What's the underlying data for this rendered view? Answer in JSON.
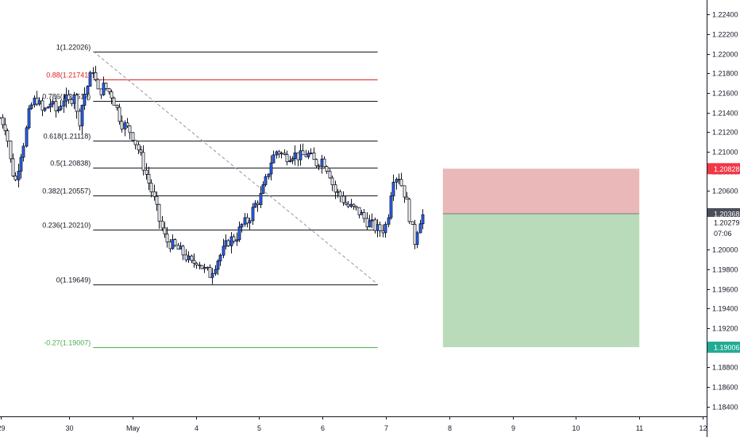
{
  "chart_data": {
    "type": "candlestick",
    "instrument_scale": "price",
    "ylim": [
      1.183,
      1.2255
    ],
    "y_ticks": [
      "1.22400",
      "1.22200",
      "1.22000",
      "1.21800",
      "1.21600",
      "1.21400",
      "1.21200",
      "1.21000",
      "1.20800",
      "1.20600",
      "1.20400",
      "1.20200",
      "1.20000",
      "1.19800",
      "1.19600",
      "1.19400",
      "1.19200",
      "1.19000",
      "1.18800",
      "1.18600",
      "1.18400"
    ],
    "y_tick_values": [
      1.224,
      1.222,
      1.22,
      1.218,
      1.216,
      1.214,
      1.212,
      1.21,
      1.208,
      1.206,
      1.204,
      1.202,
      1.2,
      1.198,
      1.196,
      1.194,
      1.192,
      1.19,
      1.188,
      1.186,
      1.184
    ],
    "x_ticks": [
      {
        "label": "29",
        "day": -1.08
      },
      {
        "label": "30",
        "day": 0
      },
      {
        "label": "May",
        "day": 1
      },
      {
        "label": "4",
        "day": 2
      },
      {
        "label": "5",
        "day": 3
      },
      {
        "label": "6",
        "day": 4
      },
      {
        "label": "7",
        "day": 5
      },
      {
        "label": "8",
        "day": 6
      },
      {
        "label": "9",
        "day": 7
      },
      {
        "label": "10",
        "day": 8
      },
      {
        "label": "11",
        "day": 9
      },
      {
        "label": "12",
        "day": 10
      }
    ],
    "candle_path": [
      [
        -1.1,
        1.2135
      ],
      [
        -1.0,
        1.2125
      ],
      [
        -0.92,
        1.2085
      ],
      [
        -0.85,
        1.207
      ],
      [
        -0.78,
        1.2095
      ],
      [
        -0.7,
        1.2115
      ],
      [
        -0.62,
        1.2145
      ],
      [
        -0.52,
        1.2155
      ],
      [
        -0.42,
        1.214
      ],
      [
        -0.3,
        1.215
      ],
      [
        -0.2,
        1.214
      ],
      [
        -0.1,
        1.2155
      ],
      [
        0.0,
        1.215
      ],
      [
        0.08,
        1.2162
      ],
      [
        0.14,
        1.2125
      ],
      [
        0.22,
        1.2155
      ],
      [
        0.3,
        1.217
      ],
      [
        0.37,
        1.2185
      ],
      [
        0.45,
        1.216
      ],
      [
        0.55,
        1.2167
      ],
      [
        0.68,
        1.2157
      ],
      [
        0.82,
        1.213
      ],
      [
        0.98,
        1.212
      ],
      [
        1.1,
        1.21
      ],
      [
        1.22,
        1.2075
      ],
      [
        1.32,
        1.2055
      ],
      [
        1.42,
        1.203
      ],
      [
        1.52,
        1.201
      ],
      [
        1.62,
        1.2005
      ],
      [
        1.72,
        1.2
      ],
      [
        1.82,
        1.1995
      ],
      [
        1.92,
        1.1985
      ],
      [
        2.02,
        1.199
      ],
      [
        2.12,
        1.198
      ],
      [
        2.22,
        1.1975
      ],
      [
        2.32,
        1.1988
      ],
      [
        2.42,
        1.1998
      ],
      [
        2.52,
        1.201
      ],
      [
        2.62,
        1.2012
      ],
      [
        2.72,
        1.2025
      ],
      [
        2.82,
        1.203
      ],
      [
        2.92,
        1.2045
      ],
      [
        3.02,
        1.2055
      ],
      [
        3.1,
        1.207
      ],
      [
        3.18,
        1.209
      ],
      [
        3.28,
        1.2102
      ],
      [
        3.4,
        1.2095
      ],
      [
        3.52,
        1.2098
      ],
      [
        3.64,
        1.2095
      ],
      [
        3.76,
        1.2098
      ],
      [
        3.88,
        1.2088
      ],
      [
        4.0,
        1.2093
      ],
      [
        4.1,
        1.208
      ],
      [
        4.18,
        1.206
      ],
      [
        4.28,
        1.2055
      ],
      [
        4.38,
        1.2045
      ],
      [
        4.48,
        1.2042
      ],
      [
        4.58,
        1.2038
      ],
      [
        4.68,
        1.203
      ],
      [
        4.78,
        1.2025
      ],
      [
        4.88,
        1.202
      ],
      [
        4.98,
        1.2022
      ],
      [
        5.04,
        1.204
      ],
      [
        5.1,
        1.2075
      ],
      [
        5.2,
        1.2075
      ],
      [
        5.3,
        1.2055
      ],
      [
        5.4,
        1.2025
      ],
      [
        5.44,
        1.2005
      ],
      [
        5.52,
        1.203
      ],
      [
        5.6,
        1.2037
      ]
    ],
    "fib_levels": [
      {
        "ratio": 1,
        "label": "1(1.22026)",
        "price": 1.22026,
        "color": "#131722"
      },
      {
        "ratio": 0.88,
        "label": "0.88(1.21741)",
        "price": 1.21741,
        "color": "#e21f1f"
      },
      {
        "ratio": 0.786,
        "label": "0.786(1.21517)",
        "price": 1.21517,
        "color": "#131722"
      },
      {
        "ratio": 0.618,
        "label": "0.618(1.21118)",
        "price": 1.21118,
        "color": "#131722"
      },
      {
        "ratio": 0.5,
        "label": "0.5(1.20838)",
        "price": 1.20838,
        "color": "#131722"
      },
      {
        "ratio": 0.382,
        "label": "0.382(1.20557)",
        "price": 1.20557,
        "color": "#131722"
      },
      {
        "ratio": 0.236,
        "label": "0.236(1.20210)",
        "price": 1.2021,
        "color": "#131722"
      },
      {
        "ratio": 0,
        "label": "0(1.19649)",
        "price": 1.19649,
        "color": "#131722"
      },
      {
        "ratio": -0.27,
        "label": "-0.27(1.19007)",
        "price": 1.19007,
        "color": "#4caf50"
      }
    ],
    "fib_range": {
      "start_day": 0.38,
      "end_day": 4.87
    },
    "trend_line": {
      "from": {
        "day": 0.38,
        "price": 1.22026
      },
      "to": {
        "day": 4.87,
        "price": 1.19649
      }
    },
    "position_tool": {
      "start_day": 5.9,
      "end_day": 9.0,
      "entry": 1.20368,
      "stop": 1.20828,
      "target": 1.19006,
      "risk_color": "#eab8b8",
      "reward_color": "#b9dbb9"
    },
    "price_badges": [
      {
        "text": "1.20828",
        "price": 1.20828,
        "bg": "#f23645",
        "fg": "#ffffff"
      },
      {
        "text": "1.20368",
        "price": 1.20368,
        "bg": "#4a4e59",
        "fg": "#ffffff"
      },
      {
        "text": "1.20279",
        "price": 1.20279,
        "bg": "#ffffff",
        "fg": "#131722"
      },
      {
        "text": "07:06",
        "price": 1.20169,
        "bg": "#ffffff",
        "fg": "#131722"
      },
      {
        "text": "1.19006",
        "price": 1.19006,
        "bg": "#22ab94",
        "fg": "#ffffff"
      }
    ],
    "colors": {
      "up_body": "#2962ff",
      "down_body": "#ffffff",
      "wick": "#131722",
      "axis": "#131722"
    }
  }
}
